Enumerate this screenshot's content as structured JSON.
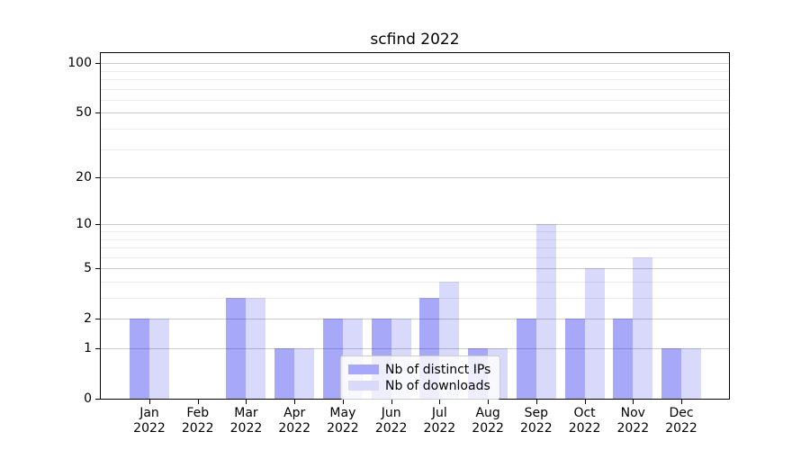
{
  "title": "scfind 2022",
  "chart_data": {
    "type": "bar",
    "title": "scfind 2022",
    "categories": [
      "Jan 2022",
      "Feb 2022",
      "Mar 2022",
      "Apr 2022",
      "May 2022",
      "Jun 2022",
      "Jul 2022",
      "Aug 2022",
      "Sep 2022",
      "Oct 2022",
      "Nov 2022",
      "Dec 2022"
    ],
    "series": [
      {
        "name": "Nb of distinct IPs",
        "values": [
          2,
          0,
          3,
          1,
          2,
          2,
          3,
          1,
          2,
          2,
          2,
          1
        ],
        "color": "rgba(0,0,235,0.34)",
        "swatch_color": "#a8a8f8"
      },
      {
        "name": "Nb of downloads",
        "values": [
          2,
          0,
          3,
          1,
          2,
          2,
          4,
          1,
          10,
          5,
          6,
          1
        ],
        "color": "rgba(0,0,235,0.15)",
        "swatch_color": "#d9d9fc"
      }
    ],
    "xlabel": "",
    "ylabel": "",
    "yscale": "log1p",
    "ylim": [
      0,
      115
    ],
    "y_major_ticks": [
      0,
      1,
      2,
      5,
      10,
      20,
      50,
      100
    ],
    "y_minor_gridlines": [
      3,
      4,
      6,
      7,
      8,
      9,
      30,
      40,
      60,
      70,
      80,
      90
    ],
    "grid": true,
    "legend_position": "lower center",
    "colors": {
      "grid_major": "#cccccc",
      "grid_minor": "#ececec",
      "axis": "#000000",
      "background": "#ffffff"
    }
  }
}
